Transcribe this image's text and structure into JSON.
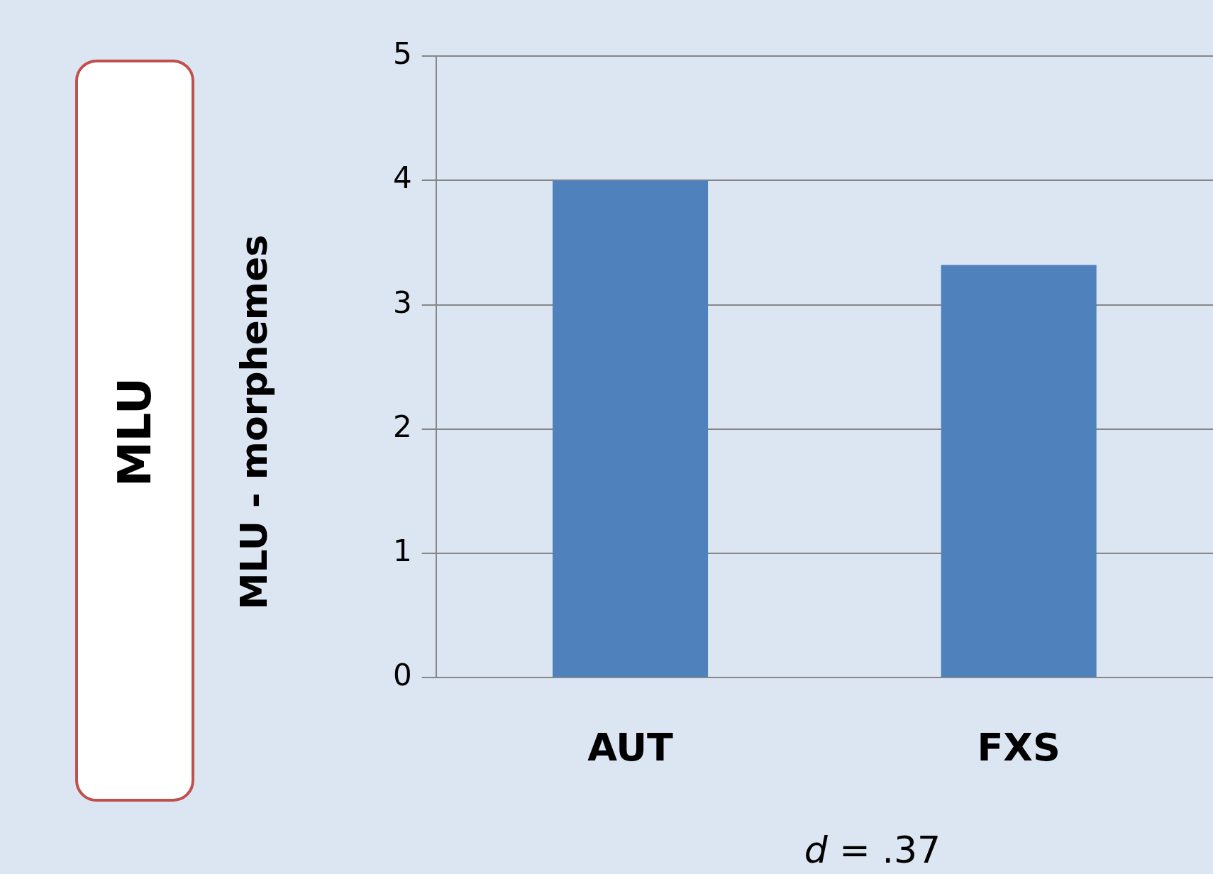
{
  "chart_data": {
    "type": "bar",
    "title": "MLU",
    "ylabel": "MLU - morphemes",
    "categories": [
      "AUT",
      "FXS"
    ],
    "values": [
      4.0,
      3.32
    ],
    "color": "#4f81bd",
    "ylim": [
      0,
      5
    ],
    "yticks": [
      0,
      1,
      2,
      3,
      4,
      5
    ],
    "grid": "y",
    "annotations": [
      "d = .37"
    ]
  }
}
